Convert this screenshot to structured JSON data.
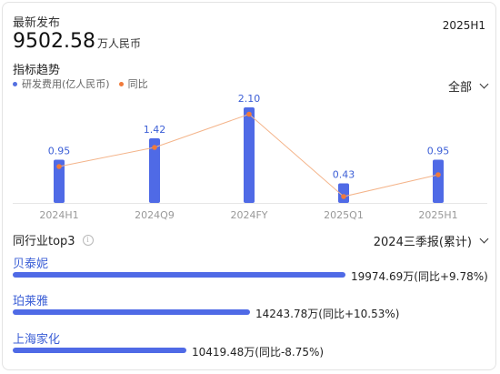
{
  "header": {
    "latest_label": "最新发布",
    "latest_value": "9502.58",
    "latest_unit": "万人民币",
    "period": "2025H1"
  },
  "trend": {
    "title": "指标趋势",
    "legend": [
      {
        "label": "研发费用(亿人民币)",
        "color": "#5470e0"
      },
      {
        "label": "同比",
        "color": "#f07a3a"
      }
    ],
    "filter_label": "全部"
  },
  "chart_data": {
    "type": "bar",
    "categories": [
      "2024H1",
      "2024Q9",
      "2024FY",
      "2025Q1",
      "2025H1"
    ],
    "series": [
      {
        "name": "研发费用(亿人民币)",
        "type": "bar",
        "values": [
          0.95,
          1.42,
          2.1,
          0.43,
          0.95
        ],
        "labels": [
          "0.95",
          "1.42",
          "2.10",
          "0.43",
          "0.95"
        ]
      },
      {
        "name": "同比",
        "type": "line",
        "values": [
          0.8,
          1.22,
          1.95,
          0.14,
          0.62
        ]
      }
    ],
    "ylim": [
      0,
      2.2
    ]
  },
  "peers": {
    "title": "同行业top3",
    "report_label": "2024三季报(累计)",
    "items": [
      {
        "name": "贝泰妮",
        "value_text": "19974.69万(同比+9.78%)",
        "value": 19974.69
      },
      {
        "name": "珀莱雅",
        "value_text": "14243.78万(同比+10.53%)",
        "value": 14243.78
      },
      {
        "name": "上海家化",
        "value_text": "10419.48万(同比-8.75%)",
        "value": 10419.48
      }
    ]
  },
  "colors": {
    "bar": "#4f6ae6",
    "line": "#f4b48a",
    "dot": "#f07a3a",
    "label": "#3c5fd6",
    "link": "#3c5fd6"
  }
}
